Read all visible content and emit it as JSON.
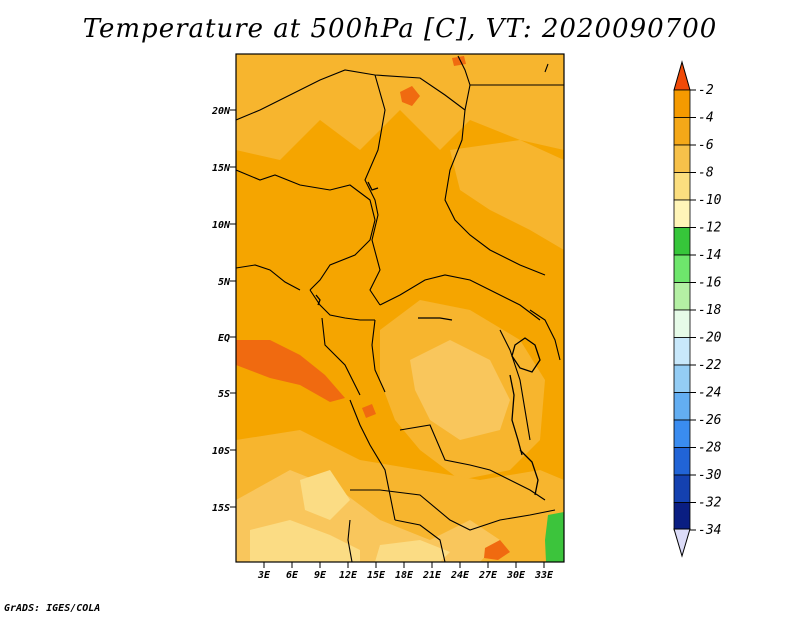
{
  "title": "Temperature at 500hPa [C], VT: 2020090700",
  "credit": "GrADS: IGES/COLA",
  "axes": {
    "lat_ticks": [
      "20N",
      "15N",
      "10N",
      "5N",
      "EQ",
      "5S",
      "10S",
      "15S"
    ],
    "lon_ticks": [
      "3E",
      "6E",
      "9E",
      "12E",
      "15E",
      "18E",
      "21E",
      "24E",
      "27E",
      "30E",
      "33E"
    ]
  },
  "colorbar": {
    "labels": [
      "-2",
      "-4",
      "-6",
      "-8",
      "-10",
      "-12",
      "-14",
      "-16",
      "-18",
      "-20",
      "-22",
      "-24",
      "-26",
      "-28",
      "-30",
      "-32",
      "-34"
    ],
    "colors": [
      "#f25a00",
      "#f59a00",
      "#f5a818",
      "#f7c14a",
      "#fbde7f",
      "#fff5b8",
      "#36c63a",
      "#6ee66c",
      "#b4f0a4",
      "#e6fbe8",
      "#c8e8fb",
      "#94cdf5",
      "#63aef2",
      "#3a8cf0",
      "#2164d6",
      "#1441b0",
      "#0a1e82",
      "#06105a"
    ],
    "top_color": "#f04a08",
    "bottom_color": "#dcdcf8"
  },
  "map": {
    "fill_colors": {
      "base": "#f5a500",
      "mid": "#f7b52e",
      "light": "#f9c65c",
      "pale": "#fbdc84",
      "warm": "#f06a10",
      "green": "#3cc43c"
    }
  }
}
